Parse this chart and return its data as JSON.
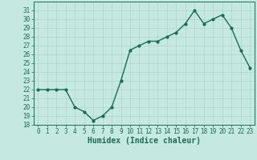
{
  "x": [
    0,
    1,
    2,
    3,
    4,
    5,
    6,
    7,
    8,
    9,
    10,
    11,
    12,
    13,
    14,
    15,
    16,
    17,
    18,
    19,
    20,
    21,
    22,
    23
  ],
  "y": [
    22,
    22,
    22,
    22,
    20,
    19.5,
    18.5,
    19,
    20,
    23,
    26.5,
    27,
    27.5,
    27.5,
    28,
    28.5,
    29.5,
    31,
    29.5,
    30,
    30.5,
    29,
    26.5,
    24.5
  ],
  "line_color": "#1a6b5a",
  "marker": "o",
  "marker_size": 2.0,
  "line_width": 1.0,
  "background_color": "#c5e8e0",
  "grid_color": "#aed4cc",
  "xlabel": "Humidex (Indice chaleur)",
  "xlim": [
    -0.5,
    23.5
  ],
  "ylim": [
    18,
    32
  ],
  "yticks": [
    18,
    19,
    20,
    21,
    22,
    23,
    24,
    25,
    26,
    27,
    28,
    29,
    30,
    31
  ],
  "xticks": [
    0,
    1,
    2,
    3,
    4,
    5,
    6,
    7,
    8,
    9,
    10,
    11,
    12,
    13,
    14,
    15,
    16,
    17,
    18,
    19,
    20,
    21,
    22,
    23
  ],
  "tick_color": "#1a6b5a",
  "tick_fontsize": 5.5,
  "xlabel_fontsize": 7.0
}
